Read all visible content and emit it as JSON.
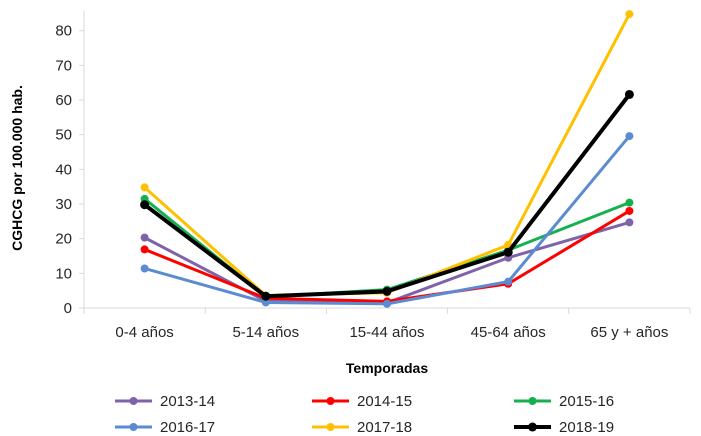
{
  "chart_data": {
    "type": "line",
    "categories": [
      "0-4 años",
      "5-14 años",
      "15-44 años",
      "45-64 años",
      "65 y + años"
    ],
    "xlabel": "Temporadas",
    "ylabel": "CGHCG por 100.000 hab.",
    "ylim": [
      0,
      85
    ],
    "yticks": [
      0,
      10,
      20,
      30,
      40,
      50,
      60,
      70,
      80
    ],
    "grid": false,
    "legend_position": "bottom",
    "series": [
      {
        "name": "2013-14",
        "color": "#7f63a8",
        "values": [
          20.3,
          2.0,
          1.5,
          14.5,
          24.7
        ]
      },
      {
        "name": "2014-15",
        "color": "#ff0000",
        "values": [
          16.9,
          2.8,
          1.9,
          7.0,
          28.0
        ]
      },
      {
        "name": "2015-16",
        "color": "#16b04e",
        "values": [
          31.5,
          3.2,
          5.3,
          16.7,
          30.4
        ]
      },
      {
        "name": "2016-17",
        "color": "#5b8bd0",
        "values": [
          11.4,
          1.6,
          1.2,
          7.6,
          49.6
        ]
      },
      {
        "name": "2017-18",
        "color": "#ffc000",
        "values": [
          34.8,
          3.6,
          4.4,
          18.2,
          84.8
        ]
      },
      {
        "name": "2018-19",
        "color": "#000000",
        "values": [
          29.8,
          3.4,
          4.8,
          16.1,
          61.6
        ]
      }
    ]
  }
}
